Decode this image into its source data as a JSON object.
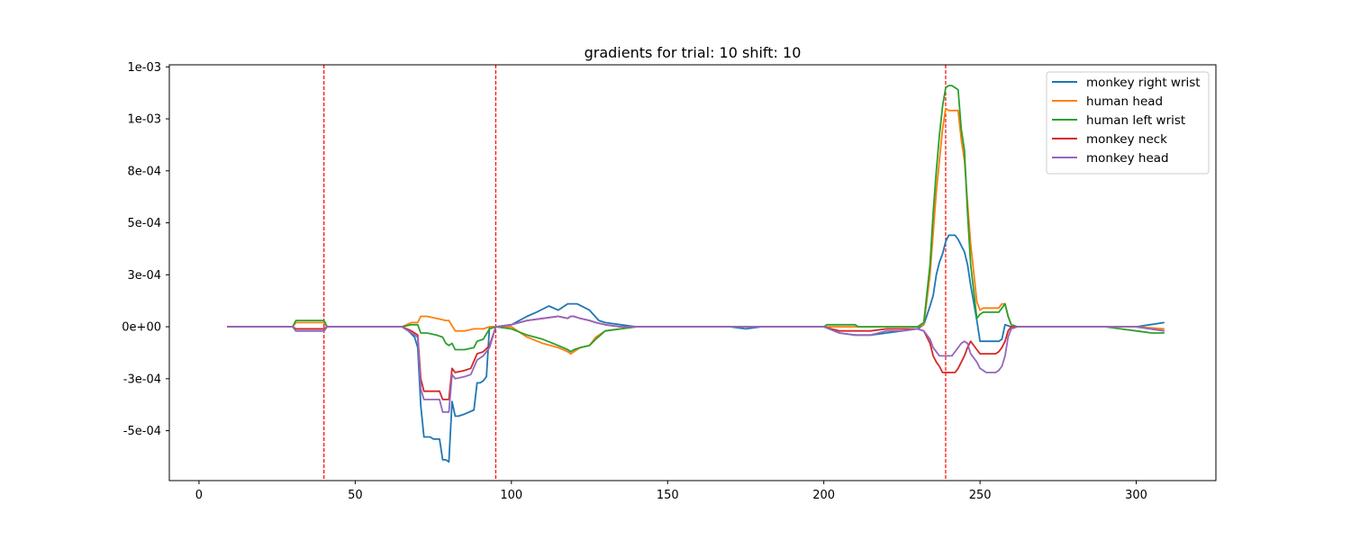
{
  "chart_data": {
    "type": "line",
    "title": "gradients for trial: 10 shift: 10",
    "xlabel": "",
    "ylabel": "",
    "xlim": [
      -9.5,
      325.5
    ],
    "ylim": [
      -0.00074,
      0.00126
    ],
    "xticks": [
      0,
      50,
      100,
      150,
      200,
      250,
      300
    ],
    "xtick_labels": [
      "0",
      "50",
      "100",
      "150",
      "200",
      "250",
      "300"
    ],
    "yticks": [
      -0.0005,
      -0.00025,
      0.0,
      0.00025,
      0.0005,
      0.00075,
      0.001,
      0.00125
    ],
    "ytick_labels": [
      "-5e-04",
      "-3e-04",
      "0e+00",
      "3e-04",
      "5e-04",
      "8e-04",
      "1e-03",
      "1e-03"
    ],
    "grid": false,
    "legend_position": "top-right",
    "vlines": [
      {
        "x": 40,
        "color": "#ff0000",
        "style": "dashed"
      },
      {
        "x": 95,
        "color": "#ff0000",
        "style": "dashed"
      },
      {
        "x": 239,
        "color": "#ff0000",
        "style": "dashed"
      }
    ],
    "series": [
      {
        "name": "monkey right wrist",
        "color": "#1f77b4",
        "x": [
          9,
          30,
          31,
          40,
          41,
          65,
          67,
          69,
          70,
          71,
          72,
          73,
          74,
          75,
          76,
          77,
          78,
          79,
          80,
          81,
          82,
          83,
          85,
          88,
          89,
          90,
          91,
          92,
          93,
          95,
          100,
          105,
          108,
          112,
          115,
          118,
          121,
          125,
          128,
          130,
          135,
          140,
          170,
          175,
          180,
          200,
          205,
          210,
          215,
          220,
          225,
          230,
          232,
          234,
          235,
          236,
          237,
          238,
          239,
          240,
          241,
          242,
          243,
          245,
          246,
          247,
          249,
          250,
          251,
          253,
          255,
          256,
          257,
          258,
          260,
          265,
          300,
          309
        ],
        "y": [
          0,
          0,
          -2e-05,
          -2e-05,
          0,
          0,
          -2e-05,
          -5e-05,
          -0.0001,
          -0.00038,
          -0.00053,
          -0.00053,
          -0.00053,
          -0.00054,
          -0.00054,
          -0.00054,
          -0.00064,
          -0.00064,
          -0.00065,
          -0.00036,
          -0.00043,
          -0.00043,
          -0.00042,
          -0.0004,
          -0.00027,
          -0.00027,
          -0.00026,
          -0.00024,
          0.0,
          0.0,
          1e-05,
          5e-05,
          7e-05,
          0.0001,
          8e-05,
          0.00011,
          0.00011,
          8e-05,
          3e-05,
          2e-05,
          1e-05,
          0,
          0,
          -1e-05,
          0,
          0,
          -3e-05,
          -4e-05,
          -4e-05,
          -3e-05,
          -2e-05,
          -1e-05,
          1e-05,
          0.0001,
          0.00015,
          0.00025,
          0.00031,
          0.00035,
          0.00041,
          0.00044,
          0.00044,
          0.00044,
          0.00042,
          0.00036,
          0.0003,
          0.0002,
          3e-05,
          -7e-05,
          -7e-05,
          -7e-05,
          -7e-05,
          -7e-05,
          -6e-05,
          1e-05,
          0.0,
          0,
          0,
          2e-05
        ]
      },
      {
        "name": "human head",
        "color": "#ff7f0e",
        "x": [
          9,
          30,
          31,
          40,
          41,
          65,
          68,
          70,
          71,
          73,
          76,
          79,
          80,
          82,
          85,
          88,
          91,
          93,
          95,
          100,
          105,
          110,
          115,
          118,
          119,
          120,
          122,
          125,
          127,
          130,
          135,
          140,
          200,
          230,
          232,
          234,
          235,
          236,
          237,
          238,
          239,
          240,
          241,
          242,
          243,
          244,
          245,
          246,
          247,
          249,
          250,
          251,
          253,
          255,
          256,
          257,
          258,
          259,
          260,
          262,
          265,
          300,
          309
        ],
        "y": [
          0,
          0,
          2e-05,
          2e-05,
          0,
          0,
          2e-05,
          2e-05,
          5e-05,
          5e-05,
          4e-05,
          3e-05,
          3e-05,
          -2e-05,
          -2e-05,
          -1e-05,
          -1e-05,
          0.0,
          0.0,
          0.0,
          -5e-05,
          -8e-05,
          -0.0001,
          -0.00012,
          -0.00013,
          -0.00012,
          -0.0001,
          -9e-05,
          -5e-05,
          -2e-05,
          -1e-05,
          0,
          0,
          0,
          1e-05,
          0.00025,
          0.00045,
          0.00065,
          0.0008,
          0.00095,
          0.00105,
          0.00104,
          0.00104,
          0.00104,
          0.00104,
          0.0009,
          0.0008,
          0.0006,
          0.0004,
          0.00012,
          8e-05,
          9e-05,
          9e-05,
          9e-05,
          9e-05,
          0.00011,
          0.00011,
          5e-05,
          1e-05,
          0.0,
          0,
          0,
          -1e-05
        ]
      },
      {
        "name": "human left wrist",
        "color": "#2ca02c",
        "x": [
          9,
          30,
          31,
          40,
          41,
          65,
          68,
          70,
          71,
          73,
          76,
          78,
          79,
          80,
          81,
          82,
          85,
          88,
          89,
          91,
          93,
          95,
          100,
          105,
          110,
          115,
          118,
          119,
          120,
          122,
          125,
          127,
          130,
          135,
          140,
          200,
          201,
          205,
          210,
          211,
          215,
          220,
          225,
          230,
          232,
          234,
          235,
          236,
          237,
          238,
          239,
          240,
          241,
          242,
          243,
          244,
          245,
          246,
          247,
          249,
          250,
          251,
          253,
          255,
          256,
          257,
          258,
          259,
          260,
          262,
          265,
          290,
          295,
          300,
          305,
          309
        ],
        "y": [
          0,
          0,
          3e-05,
          3e-05,
          0,
          0,
          1e-05,
          1e-05,
          -3e-05,
          -3e-05,
          -4e-05,
          -5e-05,
          -8e-05,
          -9e-05,
          -8e-05,
          -0.00011,
          -0.00011,
          -0.0001,
          -7e-05,
          -6e-05,
          -1e-05,
          0.0,
          -1e-05,
          -4e-05,
          -6e-05,
          -9e-05,
          -0.00011,
          -0.00012,
          -0.00011,
          -0.0001,
          -9e-05,
          -6e-05,
          -2e-05,
          -1e-05,
          0,
          0,
          1e-05,
          1e-05,
          1e-05,
          0.0,
          0.0,
          0.0,
          0.0,
          0.0,
          2e-05,
          0.0003,
          0.00055,
          0.00075,
          0.00092,
          0.00106,
          0.00115,
          0.00116,
          0.00116,
          0.00115,
          0.00114,
          0.00095,
          0.00085,
          0.00055,
          0.0003,
          4e-05,
          6e-05,
          7e-05,
          7e-05,
          7e-05,
          7e-05,
          9e-05,
          0.00011,
          5e-05,
          1e-05,
          0.0,
          0,
          0,
          -1e-05,
          -2e-05,
          -3e-05,
          -3e-05
        ]
      },
      {
        "name": "monkey neck",
        "color": "#d62728",
        "x": [
          9,
          30,
          31,
          40,
          41,
          65,
          68,
          70,
          71,
          72,
          73,
          75,
          77,
          78,
          79,
          80,
          81,
          82,
          85,
          87,
          89,
          91,
          93,
          95,
          100,
          105,
          110,
          115,
          118,
          119,
          120,
          122,
          125,
          127,
          130,
          135,
          140,
          200,
          205,
          210,
          215,
          220,
          225,
          230,
          232,
          234,
          235,
          236,
          237,
          238,
          239,
          240,
          241,
          242,
          243,
          244,
          245,
          246,
          247,
          249,
          250,
          251,
          253,
          255,
          256,
          257,
          258,
          259,
          260,
          262,
          265,
          300,
          309
        ],
        "y": [
          0,
          0,
          -1e-05,
          -1e-05,
          0,
          0,
          -2e-05,
          -4e-05,
          -0.00025,
          -0.00031,
          -0.00031,
          -0.00031,
          -0.00031,
          -0.00035,
          -0.00035,
          -0.00035,
          -0.0002,
          -0.00022,
          -0.00021,
          -0.0002,
          -0.00013,
          -0.00012,
          -9e-05,
          0.0,
          1e-05,
          3e-05,
          4e-05,
          5e-05,
          4e-05,
          5e-05,
          5e-05,
          4e-05,
          3e-05,
          2e-05,
          1e-05,
          0.0,
          0,
          0,
          -2e-05,
          -2e-05,
          -2e-05,
          -1e-05,
          -1e-05,
          -1e-05,
          -2e-05,
          -8e-05,
          -0.00014,
          -0.00017,
          -0.00019,
          -0.00022,
          -0.00022,
          -0.00022,
          -0.00022,
          -0.00022,
          -0.0002,
          -0.00017,
          -0.00014,
          -0.0001,
          -7e-05,
          -0.00011,
          -0.00013,
          -0.00013,
          -0.00013,
          -0.00013,
          -0.00012,
          -0.0001,
          -7e-05,
          -2e-05,
          0.0,
          0,
          0,
          0,
          -2e-05
        ]
      },
      {
        "name": "monkey head",
        "color": "#9467bd",
        "x": [
          9,
          30,
          31,
          40,
          41,
          65,
          68,
          70,
          71,
          72,
          73,
          75,
          77,
          78,
          79,
          80,
          81,
          82,
          85,
          87,
          89,
          91,
          93,
          95,
          100,
          105,
          110,
          115,
          118,
          119,
          120,
          122,
          125,
          127,
          130,
          135,
          140,
          200,
          205,
          210,
          215,
          220,
          225,
          230,
          232,
          234,
          235,
          236,
          237,
          238,
          239,
          240,
          241,
          242,
          243,
          244,
          245,
          246,
          247,
          249,
          250,
          251,
          252,
          253,
          255,
          256,
          257,
          258,
          259,
          260,
          262,
          265,
          300,
          309
        ],
        "y": [
          0,
          0,
          -2e-05,
          -2e-05,
          0,
          0,
          -3e-05,
          -5e-05,
          -0.0003,
          -0.00035,
          -0.00035,
          -0.00035,
          -0.00035,
          -0.00041,
          -0.00041,
          -0.00041,
          -0.00023,
          -0.00025,
          -0.00024,
          -0.00023,
          -0.00016,
          -0.00014,
          -0.0001,
          0.0,
          1e-05,
          3e-05,
          4e-05,
          5e-05,
          4e-05,
          5e-05,
          5e-05,
          4e-05,
          3e-05,
          2e-05,
          1e-05,
          0.0,
          0,
          0,
          -3e-05,
          -4e-05,
          -4e-05,
          -2e-05,
          -2e-05,
          -1e-05,
          -2e-05,
          -6e-05,
          -0.0001,
          -0.00012,
          -0.00014,
          -0.00014,
          -0.00014,
          -0.00014,
          -0.00014,
          -0.00012,
          -0.0001,
          -8e-05,
          -7e-05,
          -8e-05,
          -0.00013,
          -0.00017,
          -0.0002,
          -0.00021,
          -0.00022,
          -0.00022,
          -0.00022,
          -0.00021,
          -0.00019,
          -0.00014,
          -5e-05,
          -1e-05,
          0.0,
          0,
          0,
          -2e-05
        ]
      }
    ]
  }
}
